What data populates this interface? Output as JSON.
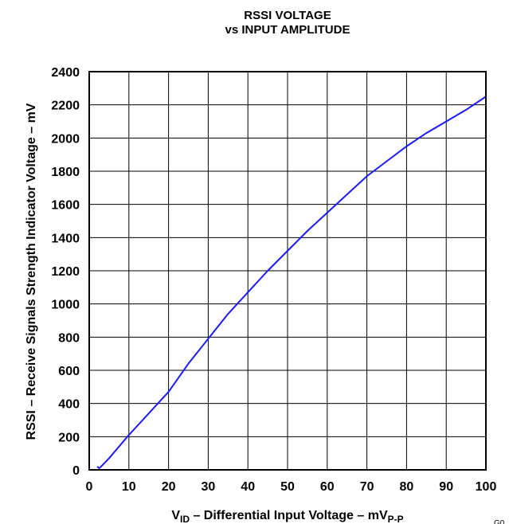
{
  "chart_data": {
    "type": "line",
    "title_line1": "RSSI VOLTAGE",
    "title_line2": "vs INPUT AMPLITUDE",
    "xlabel": {
      "main": "V",
      "sub": "ID",
      "rest": " – Differential Input Voltage – mV",
      "unit_sub": "P-P"
    },
    "ylabel": "RSSI – Receive Signals Strength Indicator Voltage – mV",
    "xlim": [
      0,
      100
    ],
    "ylim": [
      0,
      2400
    ],
    "x_ticks": [
      "0",
      "10",
      "20",
      "30",
      "40",
      "50",
      "60",
      "70",
      "80",
      "90",
      "100"
    ],
    "y_ticks": [
      "0",
      "200",
      "400",
      "600",
      "800",
      "1000",
      "1200",
      "1400",
      "1600",
      "1800",
      "2000",
      "2200",
      "2400"
    ],
    "grid": true,
    "line_color": "#1a1aff",
    "series": [
      {
        "x": [
          2,
          2.5,
          3,
          5,
          10,
          15,
          20,
          25,
          30,
          35,
          40,
          45,
          50,
          55,
          60,
          65,
          70,
          75,
          80,
          85,
          90,
          95,
          100
        ],
        "y": [
          20,
          10,
          20,
          70,
          210,
          340,
          470,
          640,
          790,
          940,
          1070,
          1200,
          1320,
          1440,
          1550,
          1660,
          1770,
          1860,
          1950,
          2030,
          2100,
          2170,
          2250
        ]
      }
    ],
    "corner_text": "G0"
  }
}
